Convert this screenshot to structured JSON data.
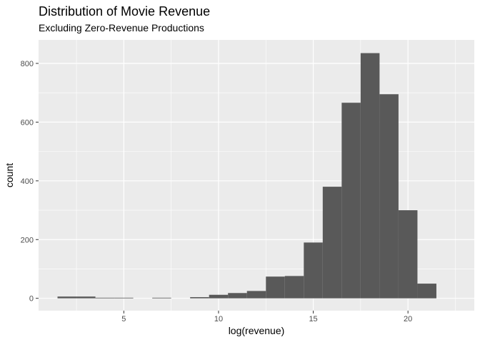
{
  "chart_data": {
    "type": "bar",
    "title": "Distribution of Movie Revenue",
    "subtitle": "Excluding Zero-Revenue Productions",
    "xlabel": "log(revenue)",
    "ylabel": "count",
    "xlim": [
      0.5,
      23.5
    ],
    "ylim": [
      -42,
      880
    ],
    "x_ticks": [
      5,
      10,
      15,
      20
    ],
    "y_ticks": [
      0,
      200,
      400,
      600,
      800
    ],
    "grid": true,
    "legend": "none",
    "bin_width": 1,
    "bins": [
      {
        "x0": 1.5,
        "x1": 2.5,
        "count": 6
      },
      {
        "x0": 2.5,
        "x1": 3.5,
        "count": 6
      },
      {
        "x0": 3.5,
        "x1": 4.5,
        "count": 2
      },
      {
        "x0": 4.5,
        "x1": 5.5,
        "count": 2
      },
      {
        "x0": 5.5,
        "x1": 6.5,
        "count": 0
      },
      {
        "x0": 6.5,
        "x1": 7.5,
        "count": 2
      },
      {
        "x0": 7.5,
        "x1": 8.5,
        "count": 0
      },
      {
        "x0": 8.5,
        "x1": 9.5,
        "count": 4
      },
      {
        "x0": 9.5,
        "x1": 10.5,
        "count": 12
      },
      {
        "x0": 10.5,
        "x1": 11.5,
        "count": 18
      },
      {
        "x0": 11.5,
        "x1": 12.5,
        "count": 25
      },
      {
        "x0": 12.5,
        "x1": 13.5,
        "count": 74
      },
      {
        "x0": 13.5,
        "x1": 14.5,
        "count": 76
      },
      {
        "x0": 14.5,
        "x1": 15.5,
        "count": 190
      },
      {
        "x0": 15.5,
        "x1": 16.5,
        "count": 380
      },
      {
        "x0": 16.5,
        "x1": 17.5,
        "count": 666
      },
      {
        "x0": 17.5,
        "x1": 18.5,
        "count": 835
      },
      {
        "x0": 18.5,
        "x1": 19.5,
        "count": 695
      },
      {
        "x0": 19.5,
        "x1": 20.5,
        "count": 300
      },
      {
        "x0": 20.5,
        "x1": 21.5,
        "count": 50
      }
    ],
    "colors": {
      "panel": "#ebebeb",
      "grid_major": "#ffffff",
      "bar": "#595959",
      "tick": "#333333"
    }
  }
}
